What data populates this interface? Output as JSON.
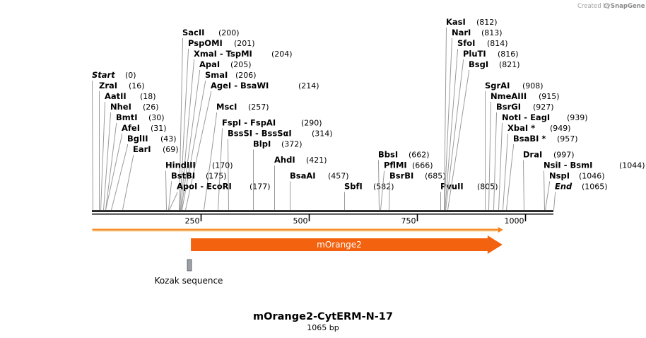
{
  "credit": {
    "prefix": "Created by",
    "brand": "SnapGene"
  },
  "map": {
    "title": "mOrange2-CytERM-N-17",
    "length_label": "1065 bp",
    "length_bp": 1065
  },
  "ruler": {
    "ticks": [
      250,
      500,
      750,
      1000
    ]
  },
  "features": [
    {
      "name": "mOrange2",
      "start": 228,
      "end": 948,
      "color": "#f2620f",
      "type": "cds"
    },
    {
      "name": "Kozak sequence",
      "start": 222,
      "end": 231,
      "color": "#9aa0a6",
      "type": "misc"
    }
  ],
  "orf": {
    "start": 1,
    "end": 948,
    "color": "#f5821f"
  },
  "sites": [
    {
      "name": "Start",
      "pos": "(0)",
      "bp": 0,
      "italic": true,
      "row": 0
    },
    {
      "name": "ZraI",
      "pos": "(16)",
      "bp": 16,
      "row": 1
    },
    {
      "name": "AatII",
      "pos": "(18)",
      "bp": 18,
      "row": 2
    },
    {
      "name": "NheI",
      "pos": "(26)",
      "bp": 26,
      "row": 3
    },
    {
      "name": "BmtI",
      "pos": "(30)",
      "bp": 30,
      "row": 4
    },
    {
      "name": "AfeI",
      "pos": "(31)",
      "bp": 31,
      "row": 5
    },
    {
      "name": "BglII",
      "pos": "(43)",
      "bp": 43,
      "row": 6
    },
    {
      "name": "EarI",
      "pos": "(69)",
      "bp": 69,
      "row": 7
    },
    {
      "name": "SacII",
      "pos": "(200)",
      "bp": 200,
      "row": -4
    },
    {
      "name": "PspOMI",
      "pos": "(201)",
      "bp": 201,
      "row": -3
    },
    {
      "name": "XmaI  - TspMI",
      "pos": "(204)",
      "bp": 204,
      "row": -2
    },
    {
      "name": "ApaI",
      "pos": "(205)",
      "bp": 205,
      "row": -1
    },
    {
      "name": "SmaI",
      "pos": "(206)",
      "bp": 206,
      "row": 0
    },
    {
      "name": "AgeI  - BsaWI",
      "pos": "(214)",
      "bp": 214,
      "row": 1
    },
    {
      "name": "MscI",
      "pos": "(257)",
      "bp": 257,
      "row": 3
    },
    {
      "name": "FspI  - FspAI",
      "pos": "(290)",
      "bp": 290,
      "row": 4.5
    },
    {
      "name": "BssSI  - BssSαI",
      "pos": "(314)",
      "bp": 314,
      "row": 5.5
    },
    {
      "name": "HindIII",
      "pos": "(170)",
      "bp": 170,
      "row": 8.5
    },
    {
      "name": "BstBI",
      "pos": "(175)",
      "bp": 175,
      "row": 9.5
    },
    {
      "name": "ApoI  - EcoRI",
      "pos": "(177)",
      "bp": 177,
      "row": 10.5
    },
    {
      "name": "BlpI",
      "pos": "(372)",
      "bp": 372,
      "row": 6.5
    },
    {
      "name": "AhdI",
      "pos": "(421)",
      "bp": 421,
      "row": 8
    },
    {
      "name": "BsaAI",
      "pos": "(457)",
      "bp": 457,
      "row": 9.5
    },
    {
      "name": "SbfI",
      "pos": "(582)",
      "bp": 582,
      "row": 10.5
    },
    {
      "name": "BbsI",
      "pos": "(662)",
      "bp": 662,
      "row": 7.5
    },
    {
      "name": "PflMI",
      "pos": "(666)",
      "bp": 666,
      "row": 8.5
    },
    {
      "name": "BsrBI",
      "pos": "(685)",
      "bp": 685,
      "row": 9.5
    },
    {
      "name": "PvuII",
      "pos": "(805)",
      "bp": 805,
      "row": 10.5
    },
    {
      "name": "KasI",
      "pos": "(812)",
      "bp": 812,
      "row": -5
    },
    {
      "name": "NarI",
      "pos": "(813)",
      "bp": 813,
      "row": -4
    },
    {
      "name": "SfoI",
      "pos": "(814)",
      "bp": 814,
      "row": -3
    },
    {
      "name": "PluTI",
      "pos": "(816)",
      "bp": 816,
      "row": -2
    },
    {
      "name": "BsgI",
      "pos": "(821)",
      "bp": 821,
      "row": -1
    },
    {
      "name": "SgrAI",
      "pos": "(908)",
      "bp": 908,
      "row": 1
    },
    {
      "name": "NmeAIII",
      "pos": "(915)",
      "bp": 915,
      "row": 2
    },
    {
      "name": "BsrGI",
      "pos": "(927)",
      "bp": 927,
      "row": 3
    },
    {
      "name": "NotI  - EagI",
      "pos": "(939)",
      "bp": 939,
      "row": 4
    },
    {
      "name": "XbaI *",
      "pos": "(949)",
      "bp": 949,
      "row": 5
    },
    {
      "name": "BsaBI *",
      "pos": "(957)",
      "bp": 957,
      "row": 6
    },
    {
      "name": "DraI",
      "pos": "(997)",
      "bp": 997,
      "row": 7.5
    },
    {
      "name": "NsiI  - BsmI",
      "pos": "(1044)",
      "bp": 1044,
      "row": 8.5
    },
    {
      "name": "NspI",
      "pos": "(1046)",
      "bp": 1046,
      "row": 9.5
    },
    {
      "name": "End",
      "pos": "(1065)",
      "bp": 1065,
      "italic": true,
      "row": 10.5
    }
  ]
}
